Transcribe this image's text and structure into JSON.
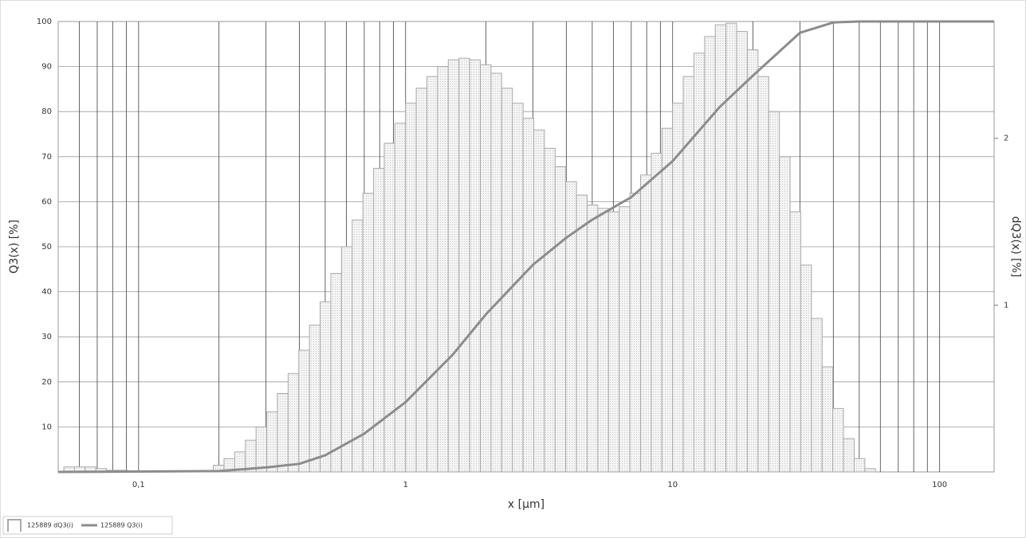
{
  "chart_data": {
    "type": "histogram",
    "y_label": "Q3(x) [%]",
    "y2_label": "dQ3(x) [%]",
    "x_label": "x [µm]",
    "xscale": "log",
    "xlim": [
      0.05,
      160
    ],
    "xticks": [
      {
        "value": 0.1,
        "label": "0,1"
      },
      1,
      10,
      100
    ],
    "xminor": [
      0.06,
      0.07,
      0.08,
      0.09,
      0.2,
      0.3,
      0.4,
      0.5,
      0.6,
      0.7,
      0.8,
      0.9,
      2,
      3,
      4,
      5,
      6,
      7,
      8,
      9,
      20,
      30,
      40,
      50,
      60,
      70,
      80,
      90
    ],
    "ylim": [
      0,
      100
    ],
    "yticks": [
      10,
      20,
      30,
      40,
      50,
      60,
      70,
      80,
      90,
      100
    ],
    "y2lim": [
      0,
      2.7
    ],
    "y2ticks": [
      1,
      2
    ],
    "grid": true,
    "legend": "bottom-left",
    "series": [
      {
        "name": "125889 dQ3(i)",
        "type": "histogram",
        "axis": "y2",
        "color": "#a9a9a9",
        "bins": [
          0.05248,
          0.05754,
          0.0631,
          0.06918,
          0.07586,
          0.08318,
          0.0912,
          0.1,
          0.1096,
          0.1202,
          0.1318,
          0.1445,
          0.1585,
          0.1738,
          0.1905,
          0.2089,
          0.2291,
          0.2512,
          0.2754,
          0.302,
          0.3311,
          0.3631,
          0.3981,
          0.4365,
          0.4786,
          0.5248,
          0.5754,
          0.631,
          0.6918,
          0.7586,
          0.8318,
          0.912,
          1,
          1.096,
          1.202,
          1.318,
          1.445,
          1.585,
          1.738,
          1.905,
          2.089,
          2.291,
          2.512,
          2.754,
          3.02,
          3.311,
          3.631,
          3.981,
          4.365,
          4.786,
          5.248,
          5.754,
          6.31,
          6.918,
          7.586,
          8.318,
          9.12,
          10,
          10.96,
          12.02,
          13.18,
          14.45,
          15.85,
          17.38,
          19.05,
          20.89,
          22.91,
          25.12,
          27.54,
          30.2,
          33.11,
          36.31,
          39.81,
          43.65,
          47.86,
          52.48,
          57.54
        ],
        "values": [
          0.03,
          0.03,
          0.03,
          0.02,
          0.01,
          0.01,
          0,
          0,
          0,
          0,
          0,
          0,
          0,
          0,
          0.04,
          0.08,
          0.12,
          0.19,
          0.27,
          0.36,
          0.47,
          0.59,
          0.73,
          0.88,
          1.02,
          1.19,
          1.35,
          1.51,
          1.67,
          1.82,
          1.97,
          2.09,
          2.21,
          2.3,
          2.37,
          2.43,
          2.47,
          2.48,
          2.47,
          2.44,
          2.39,
          2.3,
          2.21,
          2.12,
          2.05,
          1.94,
          1.83,
          1.74,
          1.66,
          1.6,
          1.58,
          1.56,
          1.59,
          1.67,
          1.78,
          1.91,
          2.06,
          2.21,
          2.37,
          2.51,
          2.61,
          2.68,
          2.69,
          2.64,
          2.53,
          2.37,
          2.16,
          1.89,
          1.56,
          1.24,
          0.92,
          0.63,
          0.38,
          0.2,
          0.08,
          0.02
        ]
      },
      {
        "name": "125889 Q3(i)",
        "type": "line",
        "color": "#8c8c8c",
        "x": [
          0.05,
          0.2,
          0.3,
          0.4,
          0.5,
          0.7,
          1,
          1.5,
          2,
          3,
          4,
          5,
          7,
          10,
          15,
          20,
          30,
          40,
          50,
          160
        ],
        "values": [
          0,
          0.2,
          1,
          1.8,
          3.7,
          8.5,
          15.5,
          26,
          35,
          46,
          52,
          56,
          61,
          69,
          81,
          88,
          97.5,
          99.8,
          100,
          100
        ]
      }
    ]
  }
}
